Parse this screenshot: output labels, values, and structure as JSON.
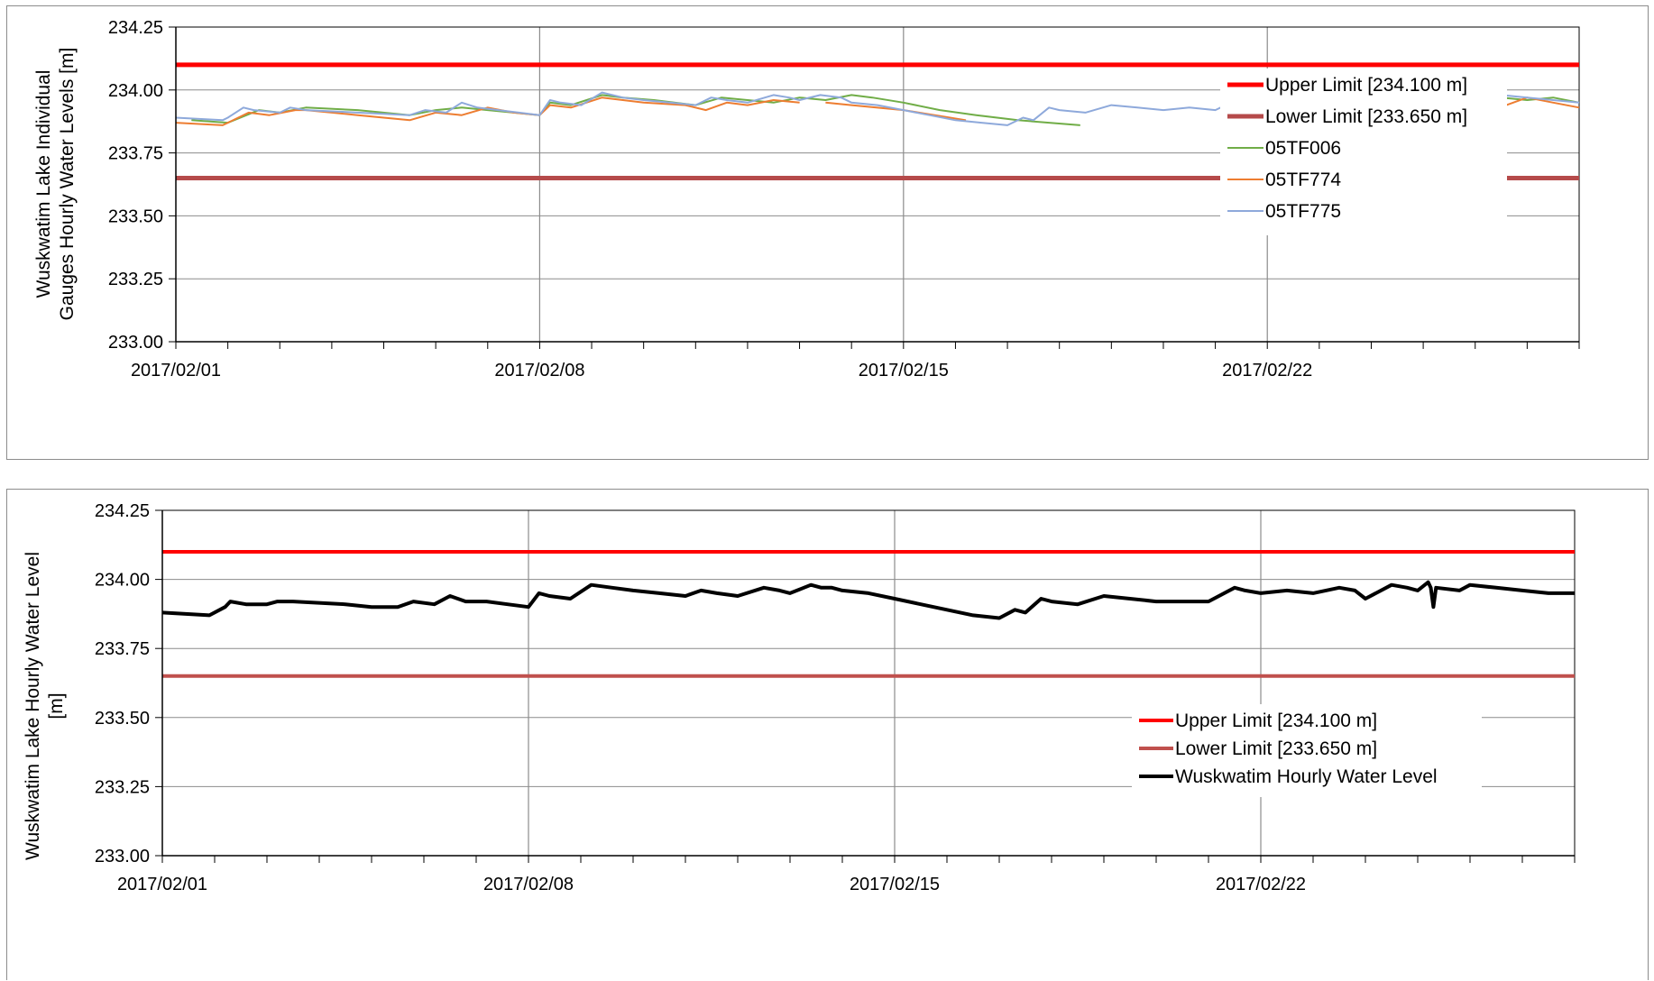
{
  "chart_data": [
    {
      "type": "line",
      "ylabel_lines": [
        "Wuskwatim Lake Individual",
        "Gauges Hourly Water Levels [m]"
      ],
      "ylim": [
        233.0,
        234.25
      ],
      "yticks": [
        "233.00",
        "233.25",
        "233.50",
        "233.75",
        "234.00",
        "234.25"
      ],
      "ytick_values": [
        233.0,
        233.25,
        233.5,
        233.75,
        234.0,
        234.25
      ],
      "xlim": [
        0,
        27
      ],
      "xticks": [
        "2017/02/01",
        "2017/02/08",
        "2017/02/15",
        "2017/02/22"
      ],
      "xtick_values": [
        0,
        7,
        14,
        21
      ],
      "grid": true,
      "legend_position": "bottom-right",
      "series": [
        {
          "name": "Upper Limit [234.100 m]",
          "color": "#ff0000",
          "x": [
            0,
            27
          ],
          "y": [
            234.1,
            234.1
          ]
        },
        {
          "name": "Lower Limit [233.650 m]",
          "color": "#b54a4a",
          "x": [
            0,
            27
          ],
          "y": [
            233.65,
            233.65
          ]
        },
        {
          "name": "05TF006",
          "color": "#70ad47",
          "x": [
            0.3,
            1.0,
            1.6,
            2.0,
            2.5,
            3.5,
            4.5,
            5.0,
            5.5,
            6.0,
            6.5,
            7.0,
            7.2,
            7.6,
            8.2,
            8.6,
            9.2,
            10.0,
            10.5,
            11.5,
            12.0,
            12.5,
            13.0,
            13.4,
            14.0,
            14.7,
            15.4,
            16.2,
            16.8,
            17.4,
            null,
            24.2,
            24.28,
            24.32,
            24.36,
            24.4,
            24.8,
            25.5,
            26.0,
            26.5,
            27.0
          ],
          "y": [
            233.88,
            233.87,
            233.92,
            233.91,
            233.93,
            233.92,
            233.9,
            233.92,
            233.93,
            233.92,
            233.91,
            233.9,
            233.95,
            233.94,
            233.98,
            233.97,
            233.96,
            233.94,
            233.97,
            233.95,
            233.97,
            233.96,
            233.98,
            233.97,
            233.95,
            233.92,
            233.9,
            233.88,
            233.87,
            233.86,
            null,
            233.97,
            233.85,
            233.77,
            233.86,
            233.97,
            233.96,
            233.97,
            233.96,
            233.97,
            233.95
          ]
        },
        {
          "name": "05TF774",
          "color": "#ed7d31",
          "x": [
            0.0,
            0.9,
            1.4,
            1.8,
            2.3,
            2.5,
            3.0,
            3.5,
            4.0,
            4.5,
            5.0,
            5.5,
            6.0,
            6.5,
            7.0,
            7.2,
            7.6,
            8.2,
            9.0,
            9.8,
            10.2,
            10.6,
            11.0,
            11.5,
            12.0,
            null,
            12.5,
            13.0,
            14.0,
            14.6,
            15.2,
            null,
            21.0,
            21.6,
            22.0,
            22.5,
            23.0,
            23.4,
            24.0,
            24.4,
            24.8,
            25.2,
            25.6,
            26.0,
            26.5,
            27.0
          ],
          "y": [
            233.87,
            233.86,
            233.91,
            233.9,
            233.92,
            233.92,
            233.91,
            233.9,
            233.89,
            233.88,
            233.91,
            233.9,
            233.93,
            233.91,
            233.9,
            233.94,
            233.93,
            233.97,
            233.95,
            233.94,
            233.92,
            233.95,
            233.94,
            233.96,
            233.95,
            null,
            233.95,
            233.94,
            233.92,
            233.9,
            233.88,
            null,
            233.94,
            233.95,
            233.93,
            233.96,
            233.92,
            233.96,
            233.95,
            233.94,
            233.96,
            233.95,
            233.94,
            233.97,
            233.95,
            233.93
          ]
        },
        {
          "name": "05TF775",
          "color": "#8ea9db",
          "x": [
            0.0,
            0.9,
            1.0,
            1.3,
            1.5,
            2.0,
            2.2,
            2.5,
            3.5,
            4.5,
            4.8,
            5.2,
            5.5,
            5.8,
            6.2,
            6.6,
            7.0,
            7.2,
            7.4,
            7.8,
            8.2,
            8.6,
            9.0,
            9.5,
            10.0,
            10.3,
            10.6,
            11.0,
            11.5,
            11.8,
            12.0,
            12.4,
            12.8,
            13.0,
            13.5,
            14.0,
            14.5,
            15.0,
            15.5,
            16.0,
            16.3,
            16.5,
            16.8,
            17.0,
            17.5,
            18.0,
            18.5,
            19.0,
            19.5,
            20.0,
            20.5,
            20.7,
            21.0,
            21.5,
            22.0,
            22.5,
            22.8,
            23.0,
            23.5,
            23.8,
            24.0,
            24.3,
            24.8,
            25.0,
            25.5,
            26.0,
            26.5,
            27.0
          ],
          "y": [
            233.89,
            233.88,
            233.89,
            233.93,
            233.92,
            233.91,
            233.93,
            233.92,
            233.91,
            233.9,
            233.92,
            233.91,
            233.95,
            233.93,
            233.92,
            233.91,
            233.9,
            233.96,
            233.95,
            233.94,
            233.99,
            233.97,
            233.96,
            233.95,
            233.94,
            233.97,
            233.96,
            233.95,
            233.98,
            233.97,
            233.96,
            233.98,
            233.97,
            233.95,
            233.94,
            233.92,
            233.9,
            233.88,
            233.87,
            233.86,
            233.89,
            233.88,
            233.93,
            233.92,
            233.91,
            233.94,
            233.93,
            233.92,
            233.93,
            233.92,
            233.97,
            233.96,
            233.95,
            233.97,
            233.96,
            233.98,
            233.97,
            233.94,
            233.98,
            233.97,
            233.96,
            233.99,
            233.97,
            233.96,
            233.98,
            233.97,
            233.96,
            233.95
          ]
        }
      ]
    },
    {
      "type": "line",
      "ylabel_lines": [
        "Wuskwatim Lake Hourly Water Level",
        "[m]"
      ],
      "ylim": [
        233.0,
        234.25
      ],
      "yticks": [
        "233.00",
        "233.25",
        "233.50",
        "233.75",
        "234.00",
        "234.25"
      ],
      "ytick_values": [
        233.0,
        233.25,
        233.5,
        233.75,
        234.0,
        234.25
      ],
      "xlim": [
        0,
        27
      ],
      "xticks": [
        "2017/02/01",
        "2017/02/08",
        "2017/02/15",
        "2017/02/22"
      ],
      "xtick_values": [
        0,
        7,
        14,
        21
      ],
      "grid": true,
      "legend_position": "bottom-right",
      "series": [
        {
          "name": "Upper Limit [234.100 m]",
          "color": "#ff0000",
          "x": [
            0,
            27
          ],
          "y": [
            234.1,
            234.1
          ]
        },
        {
          "name": "Lower Limit [233.650 m]",
          "color": "#c0504d",
          "x": [
            0,
            27
          ],
          "y": [
            233.65,
            233.65
          ]
        },
        {
          "name": "Wuskwatim Hourly Water Level",
          "color": "#000000",
          "x": [
            0.0,
            0.9,
            1.2,
            1.3,
            1.6,
            2.0,
            2.2,
            2.5,
            3.5,
            4.0,
            4.5,
            4.8,
            5.2,
            5.5,
            5.8,
            6.2,
            6.6,
            7.0,
            7.2,
            7.4,
            7.8,
            8.2,
            8.6,
            9.0,
            9.5,
            10.0,
            10.3,
            10.6,
            11.0,
            11.5,
            11.8,
            12.0,
            12.4,
            12.6,
            12.8,
            13.0,
            13.5,
            14.0,
            14.5,
            15.0,
            15.5,
            16.0,
            16.3,
            16.5,
            16.8,
            17.0,
            17.5,
            18.0,
            18.5,
            19.0,
            19.5,
            20.0,
            20.5,
            20.7,
            21.0,
            21.5,
            22.0,
            22.5,
            22.8,
            23.0,
            23.5,
            23.8,
            24.0,
            24.2,
            24.25,
            24.3,
            24.35,
            24.8,
            25.0,
            25.5,
            26.0,
            26.5,
            27.0
          ],
          "y": [
            233.88,
            233.87,
            233.9,
            233.92,
            233.91,
            233.91,
            233.92,
            233.92,
            233.91,
            233.9,
            233.9,
            233.92,
            233.91,
            233.94,
            233.92,
            233.92,
            233.91,
            233.9,
            233.95,
            233.94,
            233.93,
            233.98,
            233.97,
            233.96,
            233.95,
            233.94,
            233.96,
            233.95,
            233.94,
            233.97,
            233.96,
            233.95,
            233.98,
            233.97,
            233.97,
            233.96,
            233.95,
            233.93,
            233.91,
            233.89,
            233.87,
            233.86,
            233.89,
            233.88,
            233.93,
            233.92,
            233.91,
            233.94,
            233.93,
            233.92,
            233.92,
            233.92,
            233.97,
            233.96,
            233.95,
            233.96,
            233.95,
            233.97,
            233.96,
            233.93,
            233.98,
            233.97,
            233.96,
            233.99,
            233.97,
            233.9,
            233.97,
            233.96,
            233.98,
            233.97,
            233.96,
            233.95,
            233.95
          ]
        }
      ]
    }
  ]
}
